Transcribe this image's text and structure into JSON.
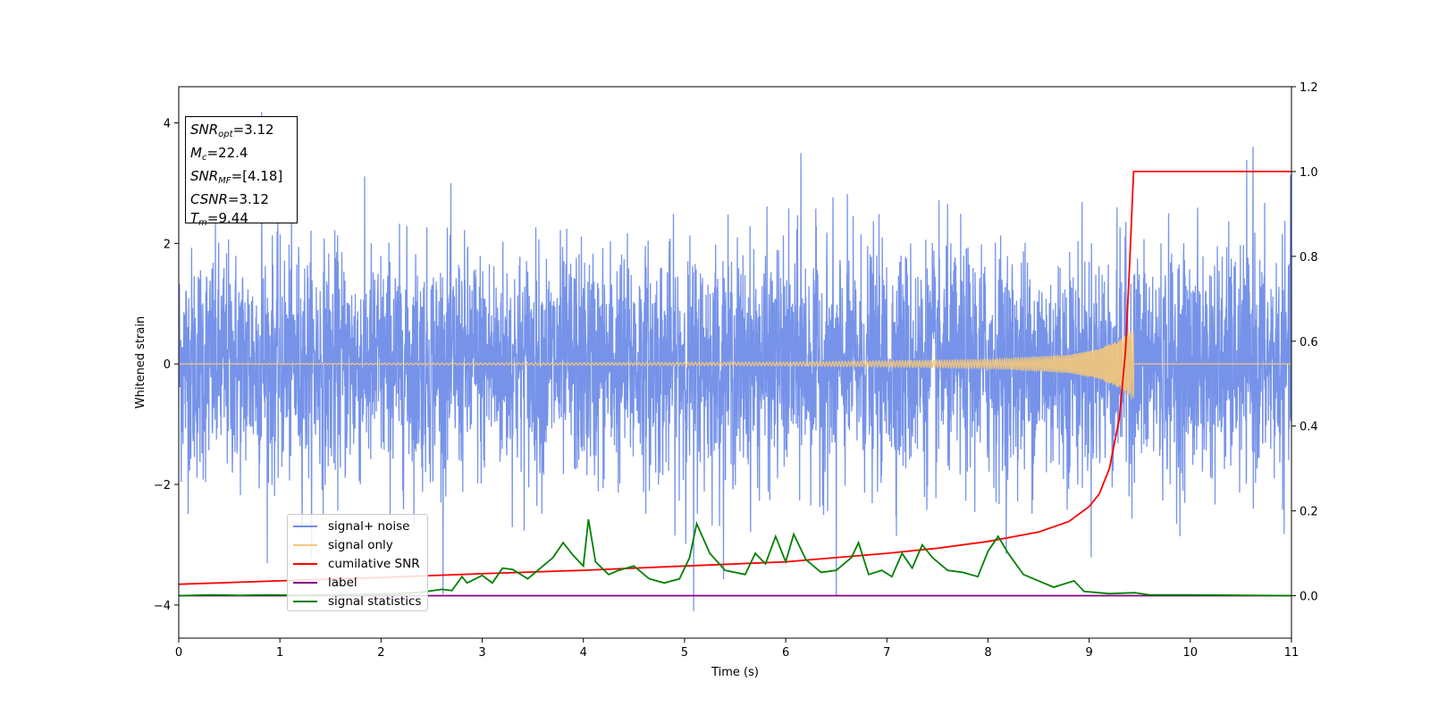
{
  "chart_data": {
    "type": "line",
    "xlabel": "Time (s)",
    "ylabel": "Whitened strain",
    "xlim": [
      0,
      11
    ],
    "ylim_left": [
      -4.55,
      4.6
    ],
    "ylim_right": [
      -0.1,
      1.2
    ],
    "x_ticks": [
      "0",
      "1",
      "2",
      "3",
      "4",
      "5",
      "6",
      "7",
      "8",
      "9",
      "10",
      "11"
    ],
    "y_left_ticks": [
      "−4",
      "−2",
      "0",
      "2",
      "4"
    ],
    "y_left_tick_values": [
      -4,
      -2,
      0,
      2,
      4
    ],
    "y_right_ticks": [
      "0.0",
      "0.2",
      "0.4",
      "0.6",
      "0.8",
      "1.0",
      "1.2"
    ],
    "y_right_tick_values": [
      0,
      0.2,
      0.4,
      0.6,
      0.8,
      1.0,
      1.2
    ],
    "legend_position": "lower-left",
    "series": [
      {
        "name": "signal+ noise",
        "axis": "left",
        "color": "#6f8de8",
        "description_values": "white Gaussian noise, roughly mean 0 with std 1 over 0–11 s",
        "peaks": [
          [
            0.82,
            4.18
          ],
          [
            5.09,
            -4.1
          ],
          [
            10.62,
            3.6
          ],
          [
            6.5,
            -3.85
          ],
          [
            6.15,
            3.5
          ]
        ]
      },
      {
        "name": "signal only",
        "axis": "left",
        "color": "#f4c87a",
        "chirp_end_time": 9.44,
        "envelope": [
          [
            0,
            0.0
          ],
          [
            6,
            0.03
          ],
          [
            8,
            0.07
          ],
          [
            8.8,
            0.15
          ],
          [
            9.1,
            0.25
          ],
          [
            9.3,
            0.4
          ],
          [
            9.44,
            0.62
          ],
          [
            9.45,
            0.0
          ],
          [
            11,
            0.0
          ]
        ]
      },
      {
        "name": "cumilative SNR",
        "axis": "right",
        "color": "#ff0000",
        "points": [
          [
            0,
            0.027
          ],
          [
            1,
            0.035
          ],
          [
            2,
            0.043
          ],
          [
            3,
            0.052
          ],
          [
            4,
            0.06
          ],
          [
            5,
            0.07
          ],
          [
            6,
            0.08
          ],
          [
            7,
            0.1
          ],
          [
            7.5,
            0.112
          ],
          [
            8,
            0.128
          ],
          [
            8.5,
            0.15
          ],
          [
            8.8,
            0.175
          ],
          [
            9.0,
            0.21
          ],
          [
            9.1,
            0.24
          ],
          [
            9.2,
            0.3
          ],
          [
            9.3,
            0.42
          ],
          [
            9.36,
            0.58
          ],
          [
            9.4,
            0.78
          ],
          [
            9.43,
            0.95
          ],
          [
            9.44,
            1.0
          ],
          [
            11,
            1.0
          ]
        ]
      },
      {
        "name": "label",
        "axis": "right",
        "color": "#800080",
        "points": [
          [
            0,
            0.0
          ],
          [
            11,
            0.0
          ]
        ]
      },
      {
        "name": "signal statistics",
        "axis": "right",
        "color": "#008000",
        "points": [
          [
            0,
            0.0
          ],
          [
            0.3,
            0.002
          ],
          [
            0.6,
            0.001
          ],
          [
            0.9,
            0.002
          ],
          [
            1.2,
            0.001
          ],
          [
            1.5,
            0.002
          ],
          [
            1.8,
            0.003
          ],
          [
            2.1,
            0.004
          ],
          [
            2.4,
            0.008
          ],
          [
            2.6,
            0.015
          ],
          [
            2.7,
            0.012
          ],
          [
            2.8,
            0.045
          ],
          [
            2.85,
            0.03
          ],
          [
            3.0,
            0.048
          ],
          [
            3.1,
            0.03
          ],
          [
            3.2,
            0.065
          ],
          [
            3.3,
            0.062
          ],
          [
            3.45,
            0.04
          ],
          [
            3.6,
            0.07
          ],
          [
            3.7,
            0.09
          ],
          [
            3.8,
            0.125
          ],
          [
            3.9,
            0.095
          ],
          [
            4.0,
            0.07
          ],
          [
            4.05,
            0.18
          ],
          [
            4.12,
            0.08
          ],
          [
            4.25,
            0.05
          ],
          [
            4.35,
            0.06
          ],
          [
            4.5,
            0.07
          ],
          [
            4.65,
            0.04
          ],
          [
            4.8,
            0.03
          ],
          [
            4.95,
            0.04
          ],
          [
            5.05,
            0.09
          ],
          [
            5.12,
            0.17
          ],
          [
            5.25,
            0.1
          ],
          [
            5.4,
            0.06
          ],
          [
            5.6,
            0.05
          ],
          [
            5.7,
            0.1
          ],
          [
            5.8,
            0.075
          ],
          [
            5.9,
            0.14
          ],
          [
            6.0,
            0.08
          ],
          [
            6.08,
            0.145
          ],
          [
            6.2,
            0.085
          ],
          [
            6.35,
            0.055
          ],
          [
            6.5,
            0.06
          ],
          [
            6.65,
            0.09
          ],
          [
            6.72,
            0.125
          ],
          [
            6.82,
            0.05
          ],
          [
            6.95,
            0.06
          ],
          [
            7.05,
            0.045
          ],
          [
            7.15,
            0.1
          ],
          [
            7.25,
            0.065
          ],
          [
            7.35,
            0.12
          ],
          [
            7.45,
            0.09
          ],
          [
            7.6,
            0.06
          ],
          [
            7.75,
            0.055
          ],
          [
            7.9,
            0.045
          ],
          [
            8.0,
            0.105
          ],
          [
            8.1,
            0.14
          ],
          [
            8.2,
            0.1
          ],
          [
            8.35,
            0.05
          ],
          [
            8.5,
            0.035
          ],
          [
            8.65,
            0.02
          ],
          [
            8.85,
            0.035
          ],
          [
            8.95,
            0.01
          ],
          [
            9.2,
            0.005
          ],
          [
            9.45,
            0.007
          ],
          [
            9.6,
            0.002
          ],
          [
            10.0,
            0.002
          ],
          [
            11.0,
            0.0
          ]
        ]
      }
    ],
    "annotation": {
      "snr_opt": "3.12",
      "mc": "22.4",
      "snr_mf": "[4.18]",
      "csnr": "3.12",
      "tm": "9.44"
    }
  },
  "info_box": {
    "snr_opt_label": "SNR",
    "snr_opt_sub": "opt",
    "snr_opt_value": "=3.12",
    "mc_label": "M",
    "mc_sub": "c",
    "mc_value": "=22.4",
    "snr_mf_label": "SNR",
    "snr_mf_sub": "MF",
    "snr_mf_value": "=[4.18]",
    "csnr_label": "CSNR",
    "csnr_value": "=3.12",
    "tm_label": "T",
    "tm_sub": "m",
    "tm_value": "=9.44"
  },
  "legend": {
    "items": [
      {
        "label": "signal+ noise",
        "color": "#6f8de8"
      },
      {
        "label": "signal only",
        "color": "#f4c87a"
      },
      {
        "label": "cumilative SNR",
        "color": "#ff0000"
      },
      {
        "label": "label",
        "color": "#800080"
      },
      {
        "label": "signal statistics",
        "color": "#008000"
      }
    ]
  }
}
